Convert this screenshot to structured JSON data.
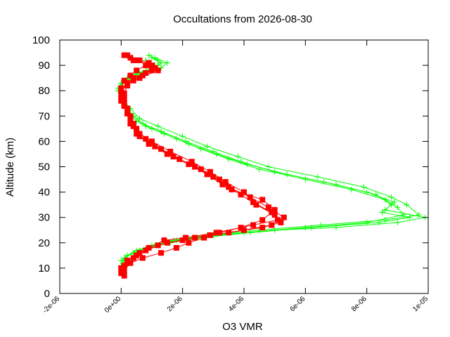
{
  "chart_data": {
    "type": "scatter",
    "title": "Occultations from 2026-08-30",
    "xlabel": "O3 VMR",
    "ylabel": "Altitude (km)",
    "xlim": [
      -2e-06,
      1e-05
    ],
    "ylim": [
      0,
      100
    ],
    "x_ticks": [
      "-2e-06",
      "0e+00",
      "2e-06",
      "4e-06",
      "6e-06",
      "8e-06",
      "1e-05"
    ],
    "y_ticks": [
      "0",
      "10",
      "20",
      "30",
      "40",
      "50",
      "60",
      "70",
      "80",
      "90",
      "100"
    ],
    "grid": false,
    "legend": "none",
    "colors": {
      "green": "#00ff00",
      "red": "#ff0000"
    },
    "series": [
      {
        "marker": "plus",
        "color": "#00ff00",
        "profiles": [
          [
            [
              1e-06,
              93
            ],
            [
              1.3e-06,
              91
            ],
            [
              1.1e-06,
              89
            ],
            [
              6e-07,
              87
            ],
            [
              2e-07,
              85
            ],
            [
              0.0,
              83
            ],
            [
              -1e-07,
              81
            ],
            [
              0.0,
              78
            ],
            [
              1e-07,
              75
            ],
            [
              2e-07,
              72
            ],
            [
              5e-07,
              68
            ],
            [
              1e-06,
              65
            ],
            [
              1.8e-06,
              61
            ],
            [
              2.6e-06,
              57
            ],
            [
              3.5e-06,
              53
            ],
            [
              4.5e-06,
              49
            ],
            [
              6e-06,
              45
            ],
            [
              7.5e-06,
              41
            ],
            [
              8.6e-06,
              37
            ],
            [
              9e-06,
              34
            ],
            [
              9.2e-06,
              31
            ],
            [
              8e-06,
              28
            ],
            [
              6e-06,
              26
            ],
            [
              4e-06,
              24
            ],
            [
              2.5e-06,
              22
            ],
            [
              1.5e-06,
              20
            ],
            [
              9e-07,
              18
            ],
            [
              4e-07,
              16
            ],
            [
              1e-07,
              14
            ],
            [
              5e-08,
              12
            ]
          ],
          [
            [
              9e-07,
              94
            ],
            [
              1.2e-06,
              92
            ],
            [
              1.2e-06,
              90
            ],
            [
              8e-07,
              88
            ],
            [
              3e-07,
              86
            ],
            [
              1e-07,
              84
            ],
            [
              0.0,
              82
            ],
            [
              0.0,
              79
            ],
            [
              1e-07,
              76
            ],
            [
              3e-07,
              73
            ],
            [
              6e-07,
              69
            ],
            [
              1.2e-06,
              66
            ],
            [
              2e-06,
              62
            ],
            [
              2.8e-06,
              58
            ],
            [
              3.8e-06,
              54
            ],
            [
              4.8e-06,
              50
            ],
            [
              6.4e-06,
              46
            ],
            [
              7.9e-06,
              42
            ],
            [
              8.8e-06,
              38
            ],
            [
              9.3e-06,
              35
            ],
            [
              9.7e-06,
              31
            ],
            [
              8.6e-06,
              29
            ],
            [
              6.5e-06,
              27
            ],
            [
              4.5e-06,
              25
            ],
            [
              2.8e-06,
              23
            ],
            [
              1.7e-06,
              21
            ],
            [
              1e-06,
              19
            ],
            [
              5e-07,
              17
            ],
            [
              2e-07,
              15
            ],
            [
              1e-07,
              13
            ]
          ],
          [
            [
              1.1e-06,
              93
            ],
            [
              1.5e-06,
              91
            ],
            [
              1.3e-06,
              89
            ],
            [
              7e-07,
              87
            ],
            [
              3e-07,
              85
            ],
            [
              0.0,
              83
            ],
            [
              -1e-07,
              80
            ],
            [
              0.0,
              77
            ],
            [
              1e-07,
              74
            ],
            [
              3e-07,
              71
            ],
            [
              7e-07,
              67
            ],
            [
              1.3e-06,
              64
            ],
            [
              2.1e-06,
              60
            ],
            [
              3e-06,
              56
            ],
            [
              3.9e-06,
              52
            ],
            [
              5e-06,
              48
            ],
            [
              6.6e-06,
              44
            ],
            [
              8e-06,
              40
            ],
            [
              8.9e-06,
              36
            ],
            [
              8.6e-06,
              33
            ],
            [
              9.9e-06,
              30
            ],
            [
              9e-06,
              28
            ],
            [
              7e-06,
              26
            ],
            [
              5e-06,
              25
            ],
            [
              3e-06,
              23
            ],
            [
              1.8e-06,
              21
            ],
            [
              1.1e-06,
              19
            ],
            [
              6e-07,
              17
            ],
            [
              2e-07,
              15
            ],
            [
              0.0,
              13
            ]
          ],
          [
            [
              8e-07,
              92
            ],
            [
              1.1e-06,
              90
            ],
            [
              1e-06,
              88
            ],
            [
              5e-07,
              86
            ],
            [
              2e-07,
              84
            ],
            [
              0.0,
              82
            ],
            [
              0.0,
              79
            ],
            [
              1e-07,
              76
            ],
            [
              2e-07,
              73
            ],
            [
              4e-07,
              70
            ],
            [
              8e-07,
              66
            ],
            [
              1.4e-06,
              63
            ],
            [
              2.2e-06,
              59
            ],
            [
              3.1e-06,
              55
            ],
            [
              4.1e-06,
              51
            ],
            [
              5.4e-06,
              47
            ],
            [
              7e-06,
              43
            ],
            [
              8.3e-06,
              39
            ],
            [
              8.8e-06,
              35
            ],
            [
              8.5e-06,
              32
            ],
            [
              9.4e-06,
              30
            ],
            [
              8.4e-06,
              28
            ],
            [
              6.2e-06,
              26
            ],
            [
              4.2e-06,
              24
            ],
            [
              2.6e-06,
              22
            ],
            [
              1.6e-06,
              20
            ],
            [
              9e-07,
              18
            ],
            [
              4e-07,
              16
            ],
            [
              1e-07,
              14
            ],
            [
              0.0,
              11
            ]
          ]
        ]
      },
      {
        "marker": "square",
        "color": "#ff0000",
        "profiles": [
          [
            [
              2e-07,
              94
            ],
            [
              6e-07,
              92
            ],
            [
              8e-07,
              90
            ],
            [
              5e-07,
              88
            ],
            [
              3e-07,
              86
            ],
            [
              1e-07,
              84
            ],
            [
              0.0,
              81
            ],
            [
              0.0,
              78
            ],
            [
              1e-07,
              75
            ],
            [
              2e-07,
              71
            ],
            [
              3e-07,
              67
            ],
            [
              5e-07,
              63
            ],
            [
              9e-07,
              59
            ],
            [
              1.5e-06,
              55
            ],
            [
              2.2e-06,
              51
            ],
            [
              2.8e-06,
              47
            ],
            [
              3.3e-06,
              43
            ],
            [
              3.9e-06,
              39
            ],
            [
              4.4e-06,
              35
            ],
            [
              5e-06,
              31
            ],
            [
              5.2e-06,
              28
            ],
            [
              4.6e-06,
              26
            ],
            [
              3.5e-06,
              24
            ],
            [
              2.4e-06,
              22
            ],
            [
              1.5e-06,
              20
            ],
            [
              8e-07,
              17
            ],
            [
              4e-07,
              14
            ],
            [
              1e-07,
              11
            ],
            [
              0.0,
              8
            ]
          ],
          [
            [
              3e-07,
              93
            ],
            [
              9e-07,
              91
            ],
            [
              1.1e-06,
              89
            ],
            [
              8e-07,
              87
            ],
            [
              4e-07,
              85
            ],
            [
              2e-07,
              83
            ],
            [
              0.0,
              80
            ],
            [
              0.0,
              77
            ],
            [
              1e-07,
              74
            ],
            [
              3e-07,
              70
            ],
            [
              4e-07,
              66
            ],
            [
              6e-07,
              62
            ],
            [
              1.1e-06,
              58
            ],
            [
              1.7e-06,
              54
            ],
            [
              2.4e-06,
              50
            ],
            [
              3e-06,
              46
            ],
            [
              3.5e-06,
              42
            ],
            [
              4.2e-06,
              38
            ],
            [
              4.8e-06,
              34
            ],
            [
              5.3e-06,
              30
            ],
            [
              4.9e-06,
              27
            ],
            [
              4e-06,
              25
            ],
            [
              2.9e-06,
              23
            ],
            [
              2e-06,
              21
            ],
            [
              1.2e-06,
              19
            ],
            [
              6e-07,
              16
            ],
            [
              2e-07,
              13
            ],
            [
              0.0,
              10
            ],
            [
              1e-07,
              7
            ]
          ],
          [
            [
              4e-07,
              92
            ],
            [
              1e-06,
              90
            ],
            [
              1e-06,
              88
            ],
            [
              7e-07,
              86
            ],
            [
              4e-07,
              84
            ],
            [
              2e-07,
              82
            ],
            [
              1e-07,
              79
            ],
            [
              0.0,
              76
            ],
            [
              2e-07,
              73
            ],
            [
              3e-07,
              69
            ],
            [
              5e-07,
              65
            ],
            [
              8e-07,
              61
            ],
            [
              1.3e-06,
              57
            ],
            [
              1.9e-06,
              53
            ],
            [
              2.6e-06,
              49
            ],
            [
              3.2e-06,
              45
            ],
            [
              3.6e-06,
              41
            ],
            [
              4.6e-06,
              37
            ],
            [
              5e-06,
              33
            ],
            [
              4.6e-06,
              29
            ],
            [
              3.9e-06,
              26
            ],
            [
              3.2e-06,
              24
            ],
            [
              2.7e-06,
              22
            ],
            [
              2.2e-06,
              20
            ],
            [
              1.8e-06,
              18
            ],
            [
              1.3e-06,
              16
            ],
            [
              7e-07,
              14
            ],
            [
              3e-07,
              12
            ],
            [
              1e-07,
              9
            ]
          ],
          [
            [
              1e-07,
              94
            ],
            [
              5e-07,
              92
            ],
            [
              9e-07,
              90
            ],
            [
              1.2e-06,
              88
            ],
            [
              6e-07,
              85
            ],
            [
              2e-07,
              83
            ],
            [
              0.0,
              80
            ],
            [
              1e-07,
              77
            ],
            [
              1e-07,
              74
            ],
            [
              2e-07,
              71
            ],
            [
              4e-07,
              67
            ],
            [
              6e-07,
              63
            ],
            [
              1e-06,
              60
            ],
            [
              1.6e-06,
              56
            ],
            [
              2.3e-06,
              52
            ],
            [
              2.9e-06,
              48
            ],
            [
              3.4e-06,
              44
            ],
            [
              4e-06,
              40
            ],
            [
              4.3e-06,
              36
            ],
            [
              4.9e-06,
              32
            ],
            [
              5.1e-06,
              29
            ],
            [
              4.3e-06,
              27
            ],
            [
              3.1e-06,
              24
            ],
            [
              2.1e-06,
              22
            ],
            [
              1.4e-06,
              21
            ],
            [
              9e-07,
              18
            ],
            [
              5e-07,
              15
            ],
            [
              2e-07,
              12
            ],
            [
              0.0,
              9
            ]
          ]
        ]
      }
    ]
  }
}
